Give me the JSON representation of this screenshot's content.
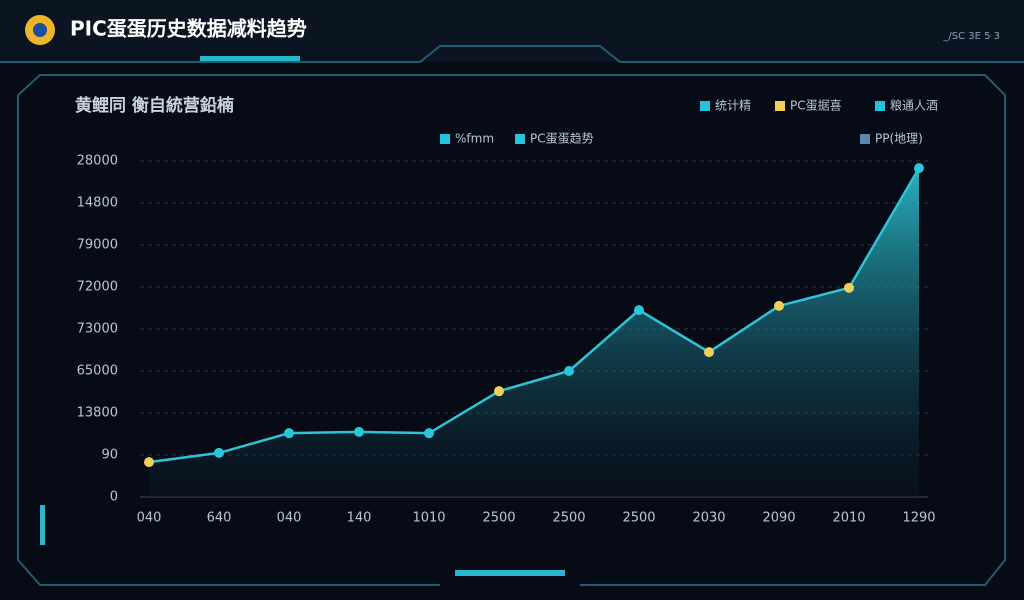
{
  "header": {
    "title": "PΙC蛋蛋历史数据减料趋势",
    "code": "_/SC 3E 5 3"
  },
  "chart_data": {
    "type": "line",
    "title": "黄鲤同 衡自統营鉛楠",
    "categories": [
      "040",
      "640",
      "040",
      "140",
      "1010",
      "2500",
      "2500",
      "2500",
      "2030",
      "2090",
      "2010",
      "1290"
    ],
    "values": [
      0.83,
      1.05,
      1.52,
      1.55,
      1.52,
      2.52,
      3.0,
      4.45,
      3.45,
      4.55,
      4.98,
      7.83
    ],
    "point_colors": [
      "#f2cf5b",
      "#29c6dc",
      "#29c6dc",
      "#29c6dc",
      "#29c6dc",
      "#f2cf5b",
      "#29c6dc",
      "#29c6dc",
      "#f2cf5b",
      "#f2cf5b",
      "#f2cf5b",
      "#29c6dc"
    ],
    "color": "#2fc3d6",
    "ylim": [
      0,
      8
    ],
    "yticks": [
      {
        "value": 0,
        "label": "0"
      },
      {
        "value": 1,
        "label": "90"
      },
      {
        "value": 2,
        "label": "13800"
      },
      {
        "value": 3,
        "label": "65000"
      },
      {
        "value": 4,
        "label": "73000"
      },
      {
        "value": 5,
        "label": "72000"
      },
      {
        "value": 6,
        "label": "79000"
      },
      {
        "value": 7,
        "label": "14800"
      },
      {
        "value": 8,
        "label": "28000"
      }
    ],
    "grid": true,
    "legend": [
      {
        "name": "统计精",
        "color": "#22c4dc"
      },
      {
        "name": "PC蛋据喜",
        "color": "#f2cf5b"
      },
      {
        "name": "粮通人酒",
        "color": "#22c4dc"
      },
      {
        "name": "%fmm",
        "color": "#22c4dc"
      },
      {
        "name": "PC蛋蛋趋势",
        "color": "#22c4dc"
      },
      {
        "name": "PP(地理)",
        "color": "#5b86b0"
      }
    ]
  }
}
